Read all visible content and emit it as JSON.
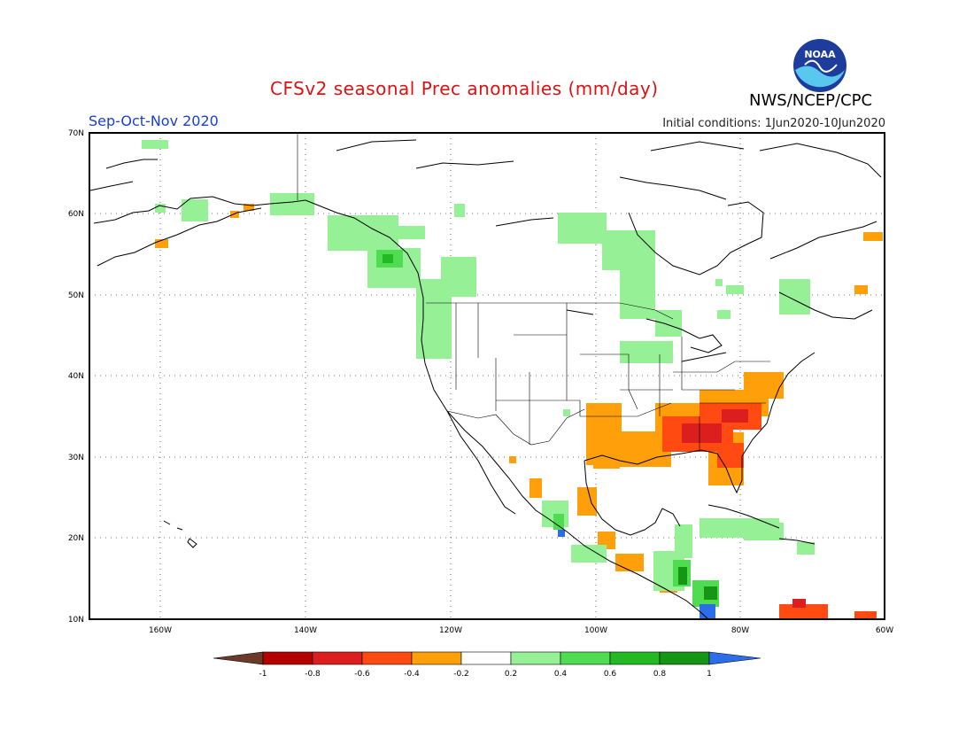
{
  "header": {
    "title": "CFSv2 seasonal Prec anomalies (mm/day)",
    "season": "Sep-Oct-Nov 2020",
    "initial_conditions": "Initial conditions: 1Jun2020-10Jun2020",
    "agency": "NWS/NCEP/CPC",
    "logo_text": "NOAA"
  },
  "map": {
    "projection": "lat-lon",
    "extent": {
      "lon_min": -170,
      "lon_max": -60,
      "lat_min": 10,
      "lat_max": 70
    },
    "lat_labels": [
      "70N",
      "60N",
      "50N",
      "40N",
      "30N",
      "20N",
      "10N"
    ],
    "lon_labels": [
      "160W",
      "140W",
      "120W",
      "100W",
      "80W",
      "60W"
    ],
    "grid": "dotted",
    "anomaly_regions": [
      {
        "name": "Southeast US",
        "category": "-0.6 to -0.4"
      },
      {
        "name": "Georgia / South Carolina",
        "category": "-0.8 to -0.6"
      },
      {
        "name": "Texas / Gulf Coast",
        "category": "-0.4 to -0.2"
      },
      {
        "name": "Pacific Northwest / British Columbia",
        "category": "0.2 to 0.4"
      },
      {
        "name": "Great Lakes",
        "category": "0.2 to 0.4"
      },
      {
        "name": "Central America",
        "category": "0.4 to 0.8"
      },
      {
        "name": "Caribbean",
        "category": "0.2 to 0.4"
      },
      {
        "name": "Northern South America",
        "category": "-0.8 to -0.4"
      }
    ]
  },
  "colorbar": {
    "labels": [
      "-1",
      "-0.8",
      "-0.6",
      "-0.4",
      "-0.2",
      "0.2",
      "0.4",
      "0.6",
      "0.8",
      "1"
    ],
    "colors": [
      "#6b3a2a",
      "#b40000",
      "#dc1e1e",
      "#ff4a12",
      "#ffa00a",
      "#ffffff",
      "#96f096",
      "#50dc50",
      "#23b923",
      "#159615",
      "#2c6ee8"
    ]
  }
}
